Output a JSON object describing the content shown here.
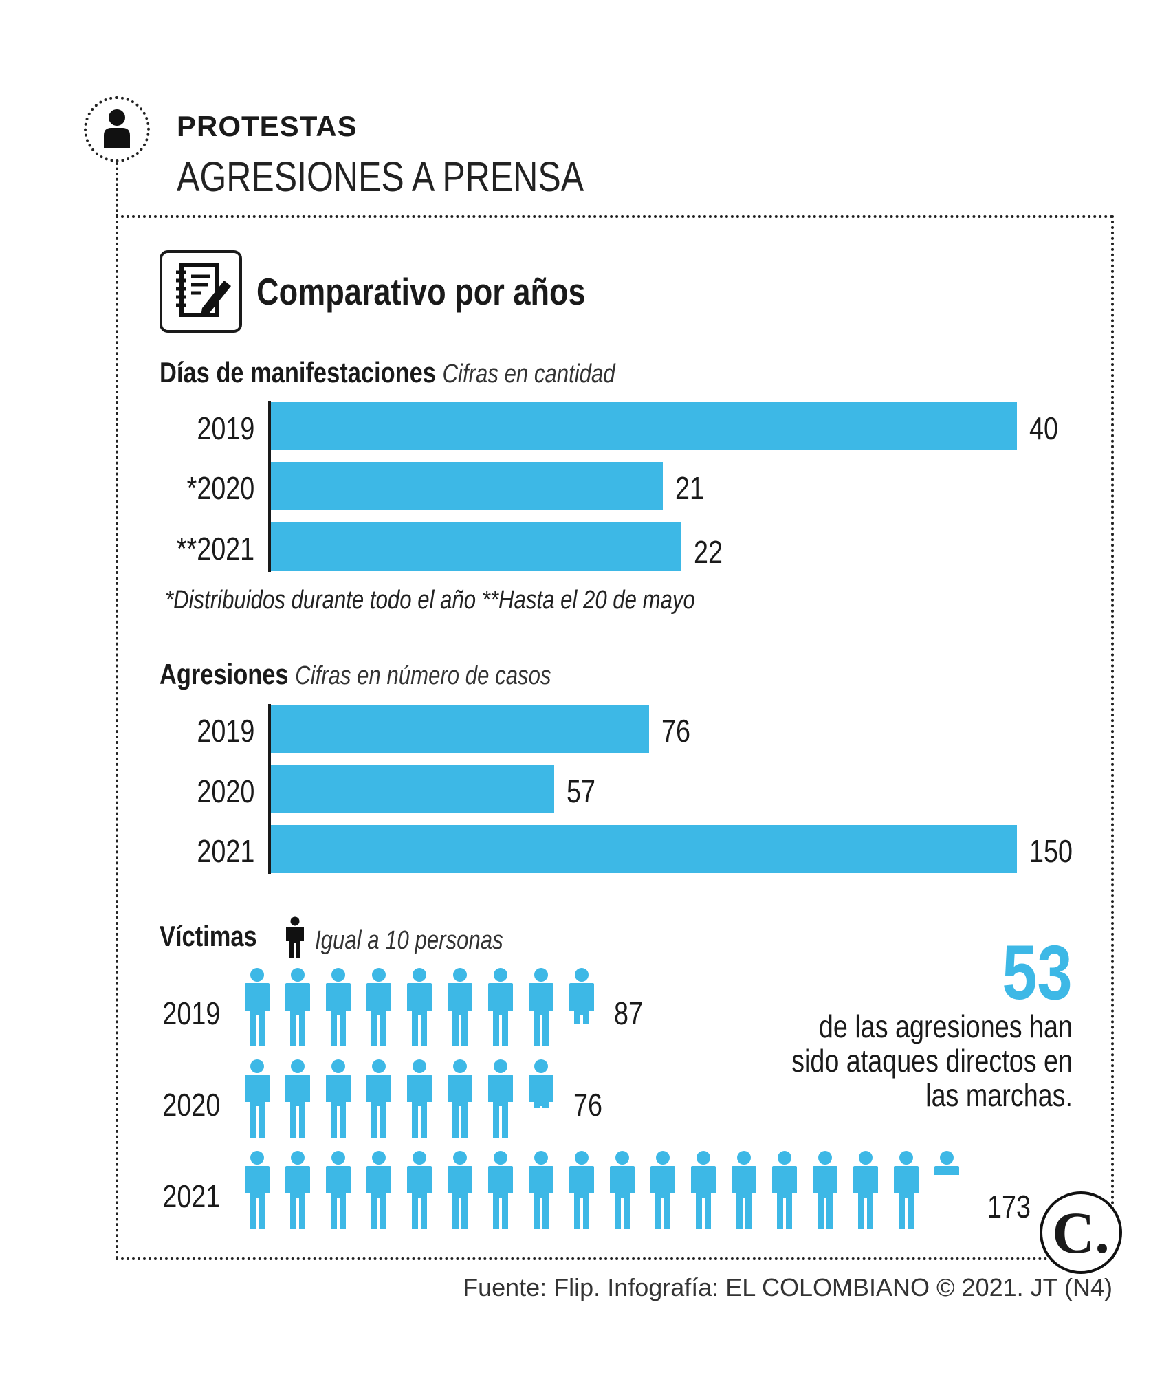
{
  "header": {
    "kicker": "PROTESTAS",
    "title": "AGRESIONES A PRENSA",
    "icon": "person-icon"
  },
  "section": {
    "title": "Comparativo por años",
    "icon": "notebook-pencil-icon"
  },
  "colors": {
    "bar": "#3db8e6",
    "text": "#1a1a1a",
    "accent": "#3db8e6"
  },
  "chart_data": [
    {
      "type": "bar",
      "orientation": "horizontal",
      "title": "Días de manifestaciones",
      "subtitle": "Cifras en cantidad",
      "categories": [
        "2019",
        "*2020",
        "**2021"
      ],
      "values": [
        40,
        21,
        22
      ],
      "value_labels": [
        "40",
        "21",
        "22"
      ],
      "xlim": [
        0,
        40
      ],
      "note": "*Distribuidos durante todo el año  **Hasta el 20 de mayo"
    },
    {
      "type": "bar",
      "orientation": "horizontal",
      "title": "Agresiones",
      "subtitle": "Cifras en número de casos",
      "categories": [
        "2019",
        "2020",
        "2021"
      ],
      "values": [
        76,
        57,
        150
      ],
      "value_labels": [
        "76",
        "57",
        "150"
      ],
      "xlim": [
        0,
        150
      ]
    },
    {
      "type": "pictogram",
      "title": "Víctimas",
      "legend": "Igual a 10 personas",
      "unit_value": 10,
      "categories": [
        "2019",
        "2020",
        "2021"
      ],
      "values": [
        87,
        76,
        173
      ],
      "value_labels": [
        "87",
        "76",
        "173"
      ]
    }
  ],
  "highlight": {
    "number": "53",
    "text": "de las agresiones han sido ataques directos en las marchas."
  },
  "footer": {
    "source": "Fuente: Flip. Infografía: EL COLOMBIANO © 2021. JT (N4)",
    "logo_letter": "C."
  }
}
